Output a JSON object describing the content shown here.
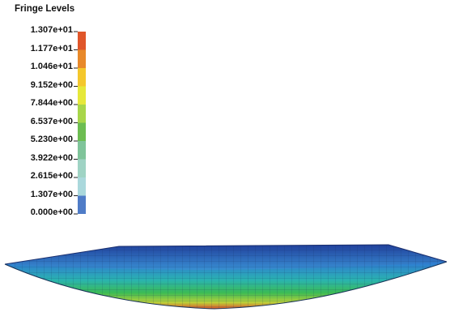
{
  "legend": {
    "title": "Fringe Levels",
    "levels": [
      {
        "label": "1.307e+01",
        "color": "#e0562a"
      },
      {
        "label": "1.177e+01",
        "color": "#e8892a"
      },
      {
        "label": "1.046e+01",
        "color": "#f4c72c"
      },
      {
        "label": "9.152e+00",
        "color": "#e6e83a"
      },
      {
        "label": "7.844e+00",
        "color": "#a8d64a"
      },
      {
        "label": "6.537e+00",
        "color": "#6dbd52"
      },
      {
        "label": "5.230e+00",
        "color": "#7fc49a"
      },
      {
        "label": "3.922e+00",
        "color": "#9fd3c4"
      },
      {
        "label": "2.615e+00",
        "color": "#aad8dc"
      },
      {
        "label": "1.307e+00",
        "color": "#4f7cc7"
      },
      {
        "label": "0.000e+00",
        "color": "#2b3f94"
      }
    ]
  }
}
